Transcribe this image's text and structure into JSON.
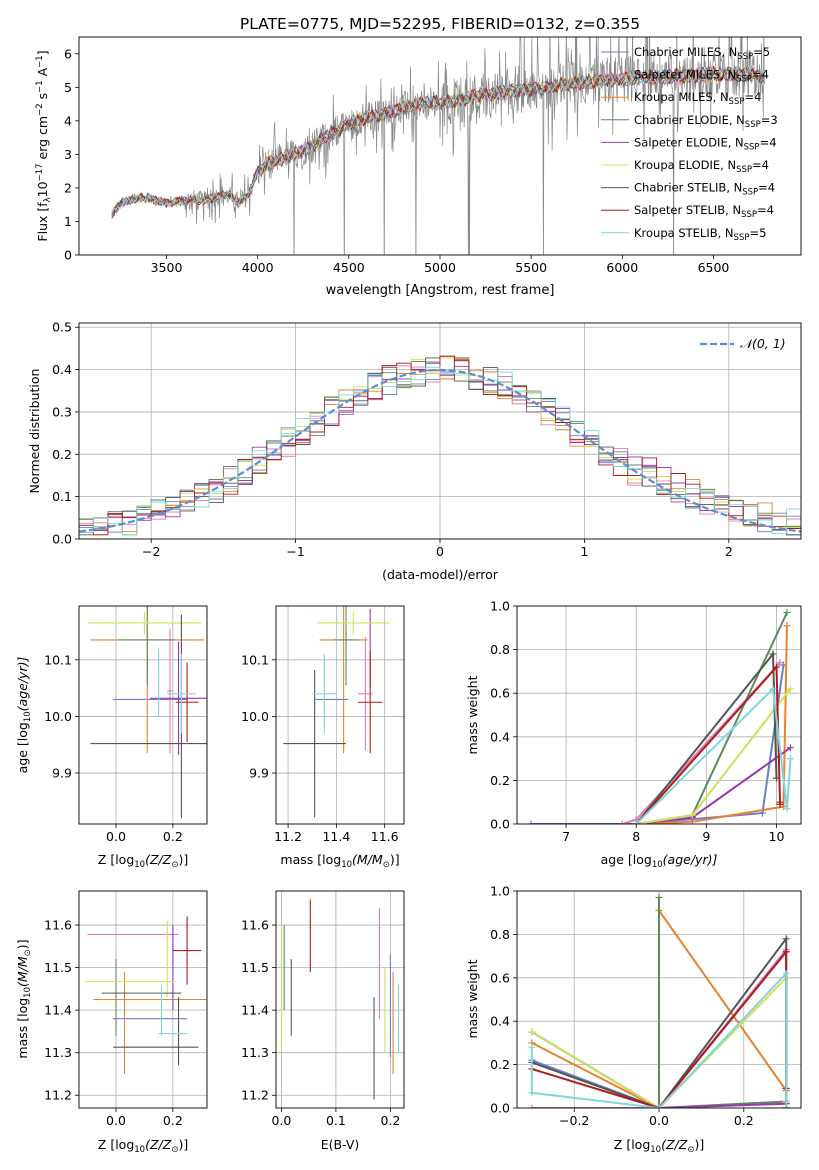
{
  "figure_title": "PLATE=0775, MJD=52295, FIBERID=0132, z=0.355",
  "colors": {
    "Chabrier MILES": "#6b7ec9",
    "Salpeter MILES": "#e07bbd",
    "Kroupa MILES": "#e8822f",
    "Chabrier ELODIE": "#5f8a5f",
    "Salpeter ELODIE": "#9b38b0",
    "Kroupa ELODIE": "#cfe05a",
    "Chabrier STELIB": "#555555",
    "Salpeter STELIB": "#b01c1c",
    "Kroupa STELIB": "#7fd6dc",
    "data": "#888888",
    "normal": "#5b8fd4"
  },
  "chart_data": [
    {
      "id": "spectrum",
      "type": "line",
      "title": "PLATE=0775, MJD=52295, FIBERID=0132, z=0.355",
      "xlabel": "wavelength [Angstrom, rest frame]",
      "ylabel": "Flux [f_λ 10^-17 erg cm^-2 s^-1 A^-1]",
      "ylabel_parts": {
        "a": "Flux [f",
        "b": "λ",
        "c": "10",
        "d": "−17",
        "e": " erg cm",
        "f": "−2",
        "g": " s",
        "h": "−1",
        "i": " A",
        "j": "−1",
        "k": "]"
      },
      "xlim": [
        3020,
        6980
      ],
      "ylim": [
        0,
        6.5
      ],
      "xticks": [
        3500,
        4000,
        4500,
        5000,
        5500,
        6000,
        6500
      ],
      "yticks": [
        0,
        1,
        2,
        3,
        4,
        5,
        6
      ],
      "grid": false,
      "legend_position": "top-right",
      "legend": [
        {
          "model": "Chabrier MILES",
          "n": "5"
        },
        {
          "model": "Salpeter MILES",
          "n": "4"
        },
        {
          "model": "Kroupa MILES",
          "n": "4"
        },
        {
          "model": "Chabrier ELODIE",
          "n": "3"
        },
        {
          "model": "Salpeter ELODIE",
          "n": "4"
        },
        {
          "model": "Kroupa ELODIE",
          "n": "4"
        },
        {
          "model": "Chabrier STELIB",
          "n": "4"
        },
        {
          "model": "Salpeter STELIB",
          "n": "4"
        },
        {
          "model": "Kroupa STELIB",
          "n": "5"
        }
      ],
      "legend_sub": "SSP",
      "continuum": {
        "x": [
          3200,
          3250,
          3300,
          3350,
          3400,
          3450,
          3500,
          3550,
          3600,
          3650,
          3700,
          3750,
          3800,
          3850,
          3900,
          3950,
          4000,
          4050,
          4100,
          4200,
          4300,
          4400,
          4500,
          4600,
          4700,
          4800,
          4900,
          5000,
          5100,
          5200,
          5300,
          5400,
          5500,
          5600,
          5700,
          5800,
          5900,
          6000,
          6100,
          6200,
          6300,
          6400,
          6500,
          6600,
          6700,
          6780
        ],
        "y": [
          1.2,
          1.55,
          1.65,
          1.7,
          1.7,
          1.62,
          1.55,
          1.6,
          1.62,
          1.65,
          1.6,
          1.7,
          1.8,
          1.75,
          1.55,
          1.8,
          2.5,
          2.7,
          2.8,
          3.0,
          3.25,
          3.6,
          3.9,
          4.1,
          4.2,
          4.4,
          4.5,
          4.55,
          4.6,
          4.75,
          4.8,
          4.9,
          4.95,
          5.0,
          5.1,
          5.15,
          5.2,
          5.25,
          5.3,
          5.3,
          5.35,
          5.35,
          5.4,
          5.4,
          5.4,
          5.3
        ]
      }
    },
    {
      "id": "residuals",
      "type": "line",
      "xlabel": "(data-model)/error",
      "ylabel": "Normed distribution",
      "xlim": [
        -2.5,
        2.5
      ],
      "ylim": [
        0,
        0.51
      ],
      "xticks": [
        -2,
        -1,
        0,
        1,
        2
      ],
      "xtick_labels": [
        "−2",
        "−1",
        "0",
        "1",
        "2"
      ],
      "yticks": [
        0.0,
        0.1,
        0.2,
        0.3,
        0.4,
        0.5
      ],
      "grid": true,
      "legend_position": "top-right",
      "normal_label": "𝒩(0, 1)"
    },
    {
      "id": "age_vs_Z",
      "type": "scatter",
      "xlabel_parts": {
        "a": "Z [log",
        "b": "10",
        "c": "(Z/Z",
        "d": "⊙",
        "e": ")]"
      },
      "ylabel_parts": {
        "a": "age  [log",
        "b": "10",
        "c": "(age/yr)]"
      },
      "xlim": [
        -0.13,
        0.32
      ],
      "ylim": [
        9.81,
        10.195
      ],
      "xticks": [
        0.0,
        0.2
      ],
      "yticks": [
        9.9,
        10.0,
        10.1
      ],
      "grid": true,
      "points": [
        {
          "model": "Chabrier MILES",
          "x": 0.12,
          "y": 10.03,
          "xerr": 0.13,
          "yerr": 0.0
        },
        {
          "model": "Salpeter MILES",
          "x": 0.19,
          "y": 10.045,
          "xerr": 0.01,
          "yerr": 0.11
        },
        {
          "model": "Kroupa MILES",
          "x": 0.11,
          "y": 10.135,
          "xerr": 0.2,
          "yerr": 0.2
        },
        {
          "model": "Chabrier ELODIE",
          "x": 0.11,
          "y": 10.135,
          "xerr": 0.1,
          "yerr": 0.08
        },
        {
          "model": "Salpeter ELODIE",
          "x": 0.22,
          "y": 10.032,
          "xerr": 0.1,
          "yerr": 0.1
        },
        {
          "model": "Kroupa ELODIE",
          "x": 0.1,
          "y": 10.165,
          "xerr": 0.2,
          "yerr": 0.02
        },
        {
          "model": "Chabrier STELIB",
          "x": 0.12,
          "y": 9.952,
          "xerr": 0.21,
          "yerr": 0.0
        },
        {
          "model": "Chabrier STELIB",
          "x": 0.23,
          "y": 10.0,
          "xerr": 0.0,
          "yerr": 0.18
        },
        {
          "model": "Salpeter STELIB",
          "x": 0.25,
          "y": 10.025,
          "xerr": 0.04,
          "yerr": 0.07
        },
        {
          "model": "Kroupa STELIB",
          "x": 0.23,
          "y": 10.04,
          "xerr": 0.05,
          "yerr": 0.07
        },
        {
          "model": "Kroupa STELIB",
          "x": 0.15,
          "y": 10.06,
          "xerr": 0.0,
          "yerr": 0.06
        }
      ]
    },
    {
      "id": "age_vs_mass",
      "type": "scatter",
      "xlabel_parts": {
        "a": "mass [log",
        "b": "10",
        "c": "(M/M",
        "d": "⊙",
        "e": ")]"
      },
      "xlim": [
        11.15,
        11.68
      ],
      "ylim": [
        9.81,
        10.195
      ],
      "xticks": [
        11.2,
        11.4,
        11.6
      ],
      "yticks": [
        9.9,
        10.0,
        10.1
      ],
      "grid": true,
      "points": [
        {
          "model": "Chabrier MILES",
          "x": 11.38,
          "y": 10.03,
          "xerr": 0.07,
          "yerr": 0.0
        },
        {
          "model": "Salpeter MILES",
          "x": 11.52,
          "y": 10.04,
          "xerr": 0.03,
          "yerr": 0.1
        },
        {
          "model": "Kroupa MILES",
          "x": 11.43,
          "y": 10.135,
          "xerr": 0.1,
          "yerr": 0.2
        },
        {
          "model": "Chabrier ELODIE",
          "x": 11.44,
          "y": 10.135,
          "xerr": 0.05,
          "yerr": 0.08
        },
        {
          "model": "Salpeter ELODIE",
          "x": 11.54,
          "y": 10.12,
          "xerr": 0.0,
          "yerr": 0.07
        },
        {
          "model": "Kroupa ELODIE",
          "x": 11.47,
          "y": 10.165,
          "xerr": 0.15,
          "yerr": 0.02
        },
        {
          "model": "Chabrier STELIB",
          "x": 11.31,
          "y": 9.952,
          "xerr": 0.13,
          "yerr": 0.13
        },
        {
          "model": "Salpeter STELIB",
          "x": 11.54,
          "y": 10.025,
          "xerr": 0.05,
          "yerr": 0.09
        },
        {
          "model": "Kroupa STELIB",
          "x": 11.35,
          "y": 10.04,
          "xerr": 0.05,
          "yerr": 0.07
        }
      ]
    },
    {
      "id": "weight_vs_age",
      "type": "line",
      "xlabel_parts": {
        "a": "age  [log",
        "b": "10",
        "c": "(age/yr)]"
      },
      "ylabel": "mass weight",
      "xlim": [
        6.3,
        10.35
      ],
      "ylim": [
        0,
        1
      ],
      "xticks": [
        7,
        8,
        9,
        10
      ],
      "yticks": [
        0.0,
        0.2,
        0.4,
        0.6,
        0.8,
        1.0
      ],
      "grid": true,
      "series": [
        {
          "model": "Chabrier MILES",
          "x": [
            6.5,
            8.0,
            9.8,
            10.1
          ],
          "y": [
            0.0,
            0.0,
            0.05,
            0.73
          ]
        },
        {
          "model": "Salpeter MILES",
          "x": [
            7.8,
            8.0,
            10.05
          ],
          "y": [
            0.0,
            0.02,
            0.74
          ]
        },
        {
          "model": "Kroupa MILES",
          "x": [
            8.0,
            8.8,
            10.1,
            10.15
          ],
          "y": [
            0.0,
            0.01,
            0.08,
            0.91
          ]
        },
        {
          "model": "Chabrier ELODIE",
          "x": [
            8.0,
            8.8,
            10.15
          ],
          "y": [
            0.0,
            0.04,
            0.97
          ]
        },
        {
          "model": "Salpeter ELODIE",
          "x": [
            8.0,
            8.8,
            10.2
          ],
          "y": [
            0.0,
            0.03,
            0.35
          ]
        },
        {
          "model": "Kroupa ELODIE",
          "x": [
            8.0,
            8.8,
            10.15,
            10.2
          ],
          "y": [
            0.0,
            0.04,
            0.6,
            0.62
          ]
        },
        {
          "model": "Chabrier STELIB",
          "x": [
            8.0,
            9.95,
            10.0
          ],
          "y": [
            0.0,
            0.78,
            0.21
          ]
        },
        {
          "model": "Salpeter STELIB",
          "x": [
            8.0,
            10.0,
            10.05,
            10.05
          ],
          "y": [
            0.0,
            0.72,
            0.1,
            0.09
          ]
        },
        {
          "model": "Kroupa STELIB",
          "x": [
            8.0,
            9.95,
            10.15,
            10.2
          ],
          "y": [
            0.0,
            0.62,
            0.07,
            0.3
          ]
        }
      ]
    },
    {
      "id": "mass_vs_Z",
      "type": "scatter",
      "xlabel_parts": {
        "a": "Z [log",
        "b": "10",
        "c": "(Z/Z",
        "d": "⊙",
        "e": ")]"
      },
      "ylabel_parts": {
        "a": "mass [log",
        "b": "10",
        "c": "(M/M",
        "d": "⊙",
        "e": ")]"
      },
      "xlim": [
        -0.13,
        0.32
      ],
      "ylim": [
        11.17,
        11.68
      ],
      "xticks": [
        0.0,
        0.2
      ],
      "yticks": [
        11.2,
        11.3,
        11.4,
        11.5,
        11.6
      ],
      "grid": true,
      "points": [
        {
          "model": "Chabrier MILES",
          "x": 0.12,
          "y": 11.38,
          "xerr": 0.13,
          "yerr": 0.0
        },
        {
          "model": "Salpeter MILES",
          "x": 0.06,
          "y": 11.578,
          "xerr": 0.16,
          "yerr": 0.0
        },
        {
          "model": "Kroupa MILES",
          "x": 0.12,
          "y": 11.425,
          "xerr": 0.2,
          "yerr": 0.0
        },
        {
          "model": "Kroupa MILES",
          "x": 0.03,
          "y": 11.37,
          "xerr": 0.0,
          "yerr": 0.12
        },
        {
          "model": "Chabrier ELODIE",
          "x": 0.0,
          "y": 11.43,
          "xerr": 0.0,
          "yerr": 0.09
        },
        {
          "model": "Salpeter ELODIE",
          "x": 0.2,
          "y": 11.5,
          "xerr": 0.0,
          "yerr": 0.1
        },
        {
          "model": "Kroupa ELODIE",
          "x": 0.05,
          "y": 11.467,
          "xerr": 0.16,
          "yerr": 0.0
        },
        {
          "model": "Kroupa ELODIE",
          "x": 0.18,
          "y": 11.52,
          "xerr": 0.0,
          "yerr": 0.09
        },
        {
          "model": "Chabrier STELIB",
          "x": 0.09,
          "y": 11.44,
          "xerr": 0.14,
          "yerr": 0.0
        },
        {
          "model": "Chabrier STELIB",
          "x": 0.14,
          "y": 11.313,
          "xerr": 0.15,
          "yerr": 0.0
        },
        {
          "model": "Chabrier STELIB",
          "x": 0.22,
          "y": 11.35,
          "xerr": 0.0,
          "yerr": 0.08
        },
        {
          "model": "Salpeter STELIB",
          "x": 0.25,
          "y": 11.54,
          "xerr": 0.05,
          "yerr": 0.08
        },
        {
          "model": "Kroupa STELIB",
          "x": 0.2,
          "y": 11.345,
          "xerr": 0.05,
          "yerr": 0.0
        },
        {
          "model": "Kroupa STELIB",
          "x": 0.16,
          "y": 11.4,
          "xerr": 0.0,
          "yerr": 0.06
        }
      ]
    },
    {
      "id": "mass_vs_ebv",
      "type": "scatter",
      "xlabel": "E(B-V)",
      "xlim": [
        -0.01,
        0.225
      ],
      "ylim": [
        11.17,
        11.68
      ],
      "xticks": [
        0.0,
        0.1,
        0.2
      ],
      "yticks": [
        11.2,
        11.3,
        11.4,
        11.5,
        11.6
      ],
      "grid": true,
      "points": [
        {
          "model": "Kroupa ELODIE",
          "x": 0.0,
          "y": 11.45,
          "xerr": 0.0,
          "yerr": 0.15
        },
        {
          "model": "Chabrier ELODIE",
          "x": 0.005,
          "y": 11.5,
          "xerr": 0.0,
          "yerr": 0.1
        },
        {
          "model": "Chabrier STELIB",
          "x": 0.018,
          "y": 11.43,
          "xerr": 0.0,
          "yerr": 0.09
        },
        {
          "model": "Salpeter STELIB",
          "x": 0.053,
          "y": 11.575,
          "xerr": 0.0,
          "yerr": 0.085
        },
        {
          "model": "Chabrier STELIB",
          "x": 0.17,
          "y": 11.31,
          "xerr": 0.0,
          "yerr": 0.12
        },
        {
          "model": "Salpeter MILES",
          "x": 0.18,
          "y": 11.51,
          "xerr": 0.0,
          "yerr": 0.13
        },
        {
          "model": "Kroupa ELODIE",
          "x": 0.19,
          "y": 11.4,
          "xerr": 0.0,
          "yerr": 0.1
        },
        {
          "model": "Chabrier MILES",
          "x": 0.2,
          "y": 11.41,
          "xerr": 0.0,
          "yerr": 0.12
        },
        {
          "model": "Kroupa MILES",
          "x": 0.205,
          "y": 11.37,
          "xerr": 0.0,
          "yerr": 0.12
        },
        {
          "model": "Kroupa STELIB",
          "x": 0.215,
          "y": 11.38,
          "xerr": 0.0,
          "yerr": 0.08
        }
      ]
    },
    {
      "id": "weight_vs_Z",
      "type": "line",
      "xlabel_parts": {
        "a": "Z [log",
        "b": "10",
        "c": "(Z/Z",
        "d": "⊙",
        "e": ")]"
      },
      "ylabel": "mass weight",
      "xlim": [
        -0.335,
        0.335
      ],
      "ylim": [
        0,
        1
      ],
      "xticks": [
        -0.2,
        0.0,
        0.2
      ],
      "xtick_labels": [
        "−0.2",
        "0.0",
        "0.2"
      ],
      "yticks": [
        0.0,
        0.2,
        0.4,
        0.6,
        0.8,
        1.0
      ],
      "grid": true,
      "series": [
        {
          "model": "Chabrier MILES",
          "x": [
            -0.3,
            0.0,
            0.3
          ],
          "y": [
            0.22,
            0.0,
            0.72
          ]
        },
        {
          "model": "Salpeter MILES",
          "x": [
            -0.3,
            0.0,
            0.3
          ],
          "y": [
            0.0,
            0.0,
            0.73
          ]
        },
        {
          "model": "Kroupa MILES",
          "x": [
            -0.3,
            0.0,
            0.0,
            0.3,
            0.3
          ],
          "y": [
            0.3,
            0.0,
            0.91,
            0.08,
            0.0
          ]
        },
        {
          "model": "Chabrier ELODIE",
          "x": [
            0.0,
            0.0,
            0.3
          ],
          "y": [
            0.97,
            0.0,
            0.03
          ]
        },
        {
          "model": "Salpeter ELODIE",
          "x": [
            -0.3,
            0.0,
            0.3
          ],
          "y": [
            0.35,
            0.0,
            0.02
          ]
        },
        {
          "model": "Kroupa ELODIE",
          "x": [
            -0.3,
            0.0,
            0.3,
            0.3
          ],
          "y": [
            0.35,
            0.0,
            0.6,
            0.03
          ]
        },
        {
          "model": "Chabrier STELIB",
          "x": [
            -0.3,
            0.0,
            0.3,
            0.3
          ],
          "y": [
            0.21,
            0.0,
            0.78,
            0.0
          ]
        },
        {
          "model": "Salpeter STELIB",
          "x": [
            -0.3,
            0.0,
            0.3,
            0.3
          ],
          "y": [
            0.18,
            0.0,
            0.72,
            0.09
          ]
        },
        {
          "model": "Kroupa STELIB",
          "x": [
            -0.3,
            -0.3,
            0.0,
            0.3,
            0.3
          ],
          "y": [
            0.28,
            0.07,
            0.0,
            0.62,
            0.0
          ]
        }
      ]
    }
  ]
}
